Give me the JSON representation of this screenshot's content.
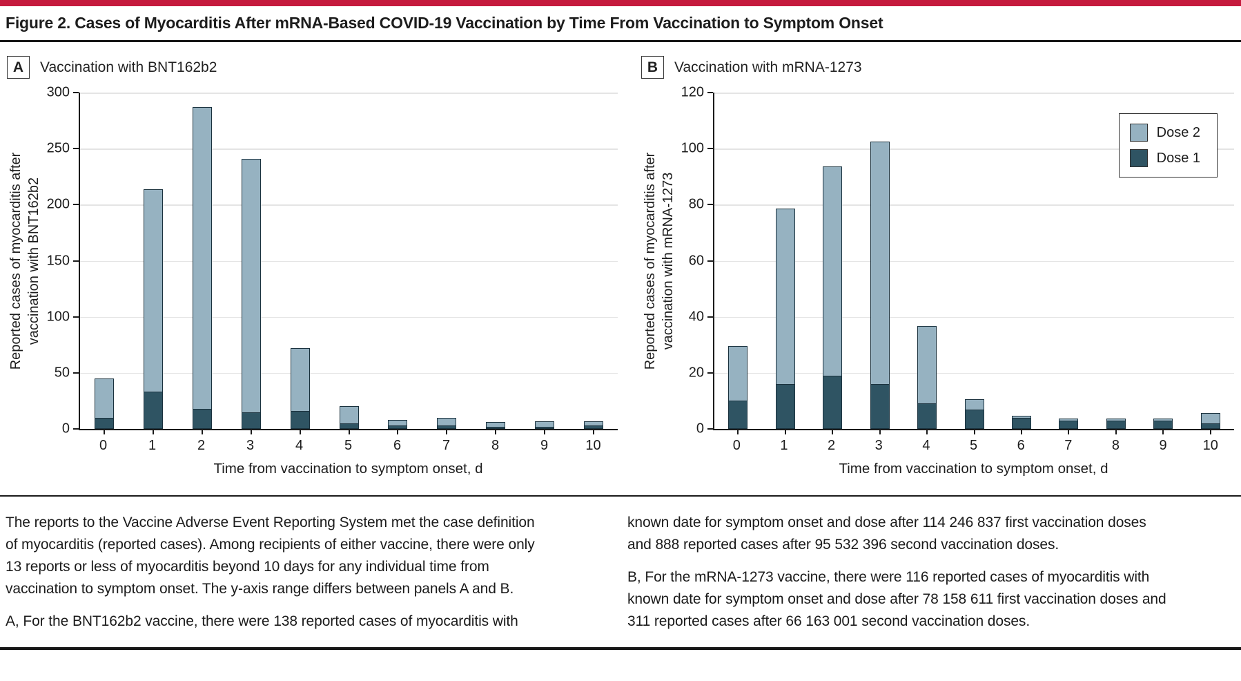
{
  "page": {
    "title": "Figure 2. Cases of Myocarditis After mRNA-Based COVID-19 Vaccination by Time From Vaccination to Symptom Onset",
    "accent_color": "#c51a3d"
  },
  "legend": {
    "items": [
      {
        "label": "Dose 2",
        "color": "#96b2c1"
      },
      {
        "label": "Dose 1",
        "color": "#2f5463"
      }
    ]
  },
  "chart_data": [
    {
      "panel": "A",
      "panel_title": "Vaccination with BNT162b2",
      "type": "bar",
      "stacked": true,
      "grid": true,
      "categories": [
        0,
        1,
        2,
        3,
        4,
        5,
        6,
        7,
        8,
        9,
        10
      ],
      "series": [
        {
          "name": "Dose 1",
          "color": "#2f5463",
          "values": [
            10,
            33,
            18,
            15,
            16,
            5,
            3,
            3,
            2,
            2,
            3
          ]
        },
        {
          "name": "Dose 2",
          "color": "#96b2c1",
          "values": [
            36,
            182,
            270,
            227,
            57,
            16,
            6,
            8,
            5,
            6,
            5
          ]
        }
      ],
      "totals": [
        46,
        215,
        288,
        242,
        73,
        21,
        9,
        11,
        7,
        8,
        8
      ],
      "ylabel": "Reported cases of myocarditis after\nvaccination with BNT162b2",
      "xlabel": "Time from vaccination to symptom onset, d",
      "ylim": [
        0,
        300
      ],
      "ytick": 50
    },
    {
      "panel": "B",
      "panel_title": "Vaccination with mRNA-1273",
      "type": "bar",
      "stacked": true,
      "grid": true,
      "categories": [
        0,
        1,
        2,
        3,
        4,
        5,
        6,
        7,
        8,
        9,
        10
      ],
      "series": [
        {
          "name": "Dose 1",
          "color": "#2f5463",
          "values": [
            10,
            16,
            19,
            16,
            9,
            7,
            4,
            3,
            3,
            3,
            2
          ]
        },
        {
          "name": "Dose 2",
          "color": "#96b2c1",
          "values": [
            20,
            63,
            75,
            87,
            28,
            4,
            1,
            1,
            1,
            1,
            4
          ]
        }
      ],
      "totals": [
        30,
        79,
        94,
        103,
        37,
        11,
        5,
        4,
        4,
        4,
        6
      ],
      "ylabel": "Reported cases of myocarditis after\nvaccination with mRNA-1273",
      "xlabel": "Time from vaccination to symptom onset, d",
      "ylim": [
        0,
        120
      ],
      "ytick": 20
    }
  ],
  "footnotes": {
    "left_p1": "The reports to the Vaccine Adverse Event Reporting System met the case definition of myocarditis (reported cases). Among recipients of either vaccine, there were only 13 reports or less of myocarditis beyond 10 days for any individual time from vaccination to symptom onset. The y-axis range differs between panels A and B.",
    "left_p2": "A, For the BNT162b2 vaccine, there were 138 reported cases of myocarditis with",
    "right_p1": "known date for symptom onset and dose after 114 246 837 first vaccination doses and 888 reported cases after 95 532 396 second vaccination doses.",
    "right_p2": "B, For the mRNA-1273 vaccine, there were 116 reported cases of myocarditis with known date for symptom onset and dose after 78 158 611 first vaccination doses and 311 reported cases after 66 163 001 second vaccination doses."
  }
}
